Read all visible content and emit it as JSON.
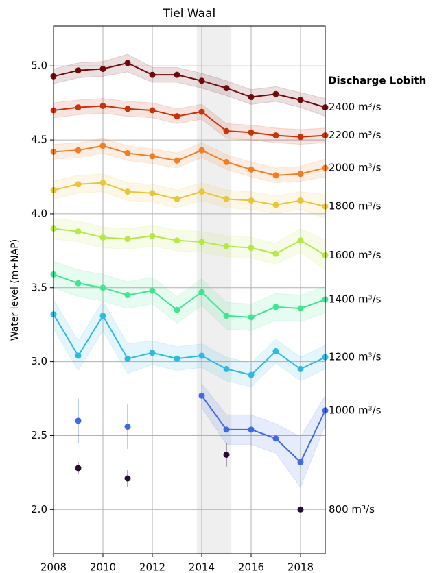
{
  "chart_data": {
    "type": "line",
    "title": "Tiel Waal",
    "y_label": "Water level (m+NAP)",
    "legend_title": "Discharge Lobith",
    "x": [
      2008,
      2009,
      2010,
      2011,
      2012,
      2013,
      2014,
      2015,
      2016,
      2017,
      2018,
      2019
    ],
    "xlim": [
      2008,
      2019
    ],
    "xticks": [
      2008,
      2010,
      2012,
      2014,
      2016,
      2018
    ],
    "ylim": [
      1.7,
      5.27
    ],
    "yticks": [
      {
        "value": 2,
        "label": "2.0"
      },
      2.5,
      {
        "value": 3,
        "label": "3.0"
      },
      3.5,
      {
        "value": 4,
        "label": "4.0"
      },
      4.5,
      {
        "value": 5,
        "label": "5.0"
      }
    ],
    "grid": true,
    "shaded_span": [
      2013.8,
      2015.2
    ],
    "series": [
      {
        "name": "2400 m³/s",
        "color": "#6e0a0a",
        "values": [
          4.93,
          4.97,
          4.98,
          5.02,
          4.94,
          4.94,
          4.9,
          4.85,
          4.79,
          4.81,
          4.77,
          4.72
        ],
        "errors": [
          0.05,
          0.05,
          0.05,
          0.06,
          0.05,
          0.05,
          0.05,
          0.05,
          0.05,
          0.05,
          0.05,
          0.06
        ]
      },
      {
        "name": "2200 m³/s",
        "color": "#c8320a",
        "values": [
          4.7,
          4.72,
          4.73,
          4.71,
          4.7,
          4.66,
          4.69,
          4.56,
          4.55,
          4.53,
          4.52,
          4.53
        ],
        "errors": [
          0.05,
          0.05,
          0.05,
          0.05,
          0.05,
          0.05,
          0.05,
          0.05,
          0.05,
          0.05,
          0.05,
          0.05
        ]
      },
      {
        "name": "2000 m³/s",
        "color": "#f27d23",
        "values": [
          4.42,
          4.43,
          4.46,
          4.41,
          4.39,
          4.36,
          4.43,
          4.35,
          4.3,
          4.26,
          4.27,
          4.31
        ],
        "errors": [
          0.05,
          0.05,
          0.05,
          0.05,
          0.05,
          0.05,
          0.05,
          0.05,
          0.05,
          0.05,
          0.05,
          0.06
        ]
      },
      {
        "name": "1800 m³/s",
        "color": "#e9c53a",
        "values": [
          4.16,
          4.2,
          4.21,
          4.15,
          4.14,
          4.1,
          4.15,
          4.1,
          4.09,
          4.06,
          4.09,
          4.05
        ],
        "errors": [
          0.06,
          0.06,
          0.06,
          0.06,
          0.06,
          0.06,
          0.06,
          0.06,
          0.06,
          0.06,
          0.06,
          0.08
        ]
      },
      {
        "name": "1600 m³/s",
        "color": "#b6e948",
        "values": [
          3.9,
          3.88,
          3.84,
          3.83,
          3.85,
          3.82,
          3.81,
          3.78,
          3.77,
          3.73,
          3.82,
          3.72
        ],
        "errors": [
          0.07,
          0.07,
          0.07,
          0.07,
          0.07,
          0.07,
          0.07,
          0.07,
          0.07,
          0.07,
          0.08,
          0.1
        ]
      },
      {
        "name": "1400 m³/s",
        "color": "#3fe58f",
        "values": [
          3.59,
          3.53,
          3.5,
          3.45,
          3.48,
          3.35,
          3.47,
          3.31,
          3.3,
          3.37,
          3.36,
          3.42
        ],
        "errors": [
          0.09,
          0.09,
          0.09,
          0.09,
          0.09,
          0.09,
          0.09,
          0.09,
          0.09,
          0.09,
          0.09,
          0.09
        ]
      },
      {
        "name": "1200 m³/s",
        "color": "#2cb9e2",
        "values": [
          3.32,
          3.04,
          3.31,
          3.02,
          3.06,
          3.02,
          3.04,
          2.95,
          2.91,
          3.07,
          2.95,
          3.03
        ],
        "errors": [
          0.1,
          0.1,
          0.1,
          0.1,
          0.08,
          0.08,
          0.08,
          0.08,
          0.08,
          0.08,
          0.08,
          0.08
        ]
      },
      {
        "name": "1000 m³/s",
        "color": "#4169e1",
        "values": [
          null,
          2.6,
          null,
          2.56,
          null,
          null,
          2.77,
          2.54,
          2.54,
          2.48,
          2.32,
          2.67
        ],
        "errors": [
          null,
          0.15,
          null,
          0.15,
          null,
          null,
          0.08,
          0.1,
          0.1,
          0.1,
          0.17,
          0.1
        ]
      },
      {
        "name": "800 m³/s",
        "color": "#2a0b38",
        "values": [
          null,
          2.28,
          null,
          2.21,
          null,
          null,
          null,
          2.37,
          null,
          null,
          2.0,
          null
        ],
        "errors": [
          null,
          0.04,
          null,
          0.06,
          null,
          null,
          null,
          0.08,
          null,
          null,
          0,
          null
        ]
      }
    ]
  }
}
